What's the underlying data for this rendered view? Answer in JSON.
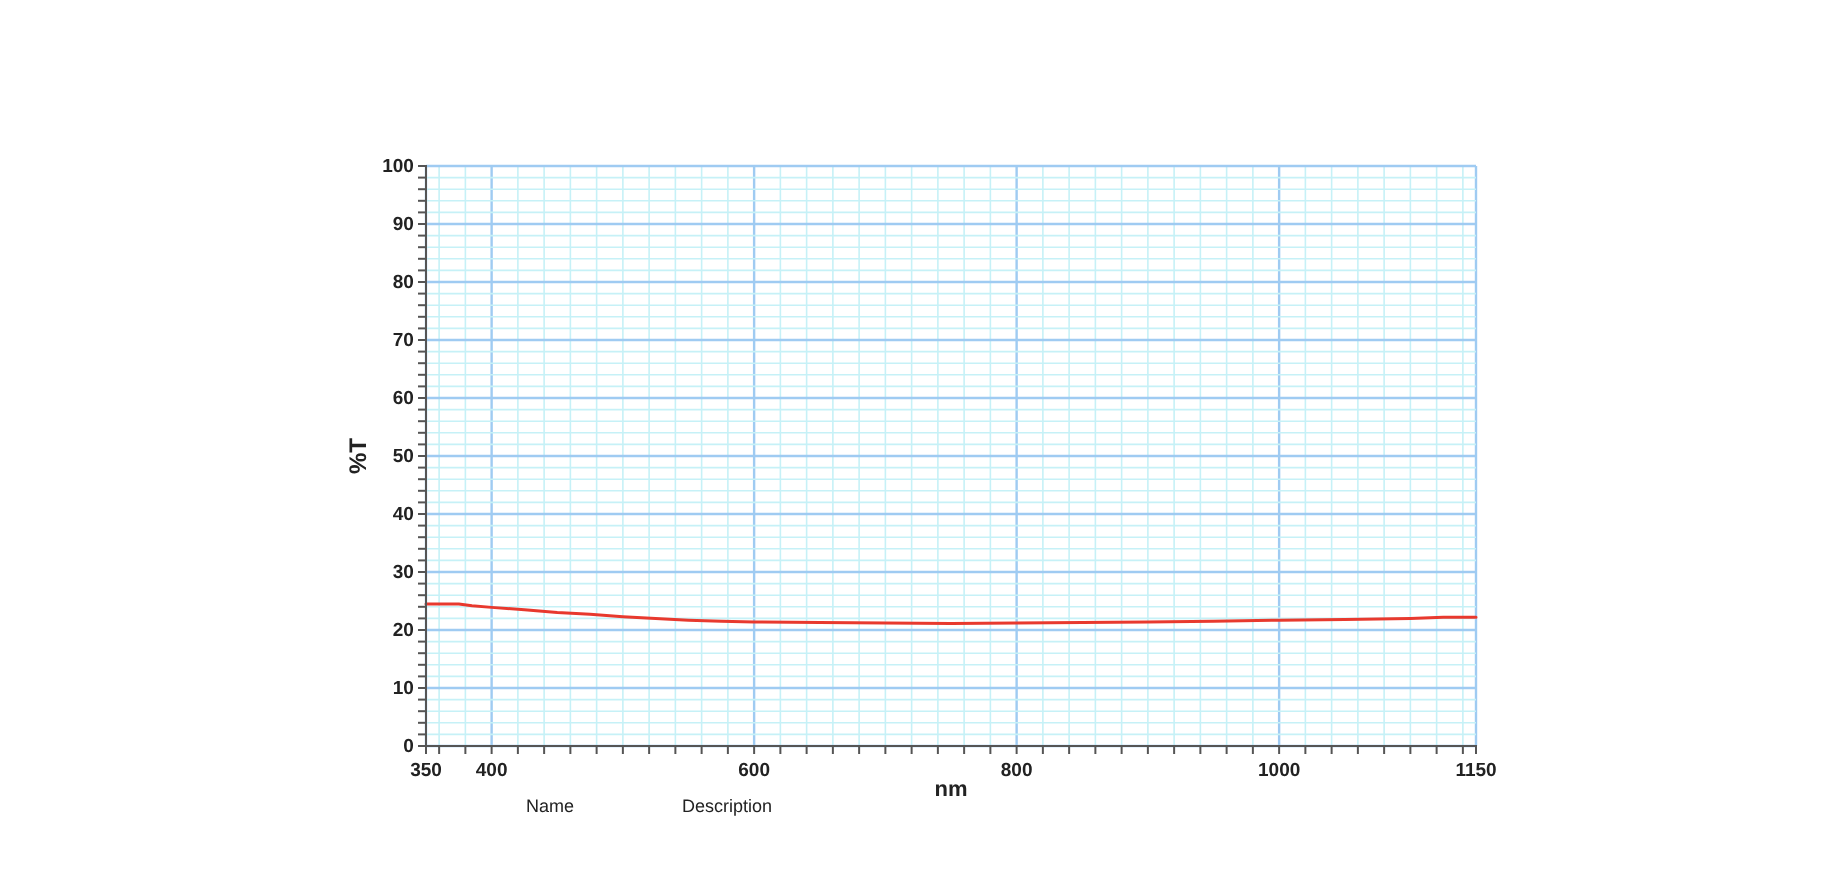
{
  "chart_data": {
    "type": "line",
    "xlabel": "nm",
    "ylabel": "%T",
    "annotations": [
      "Name",
      "Description"
    ],
    "x": [
      350,
      375,
      385,
      400,
      425,
      450,
      475,
      500,
      525,
      550,
      575,
      600,
      650,
      700,
      750,
      800,
      850,
      900,
      950,
      1000,
      1050,
      1100,
      1125,
      1150
    ],
    "series": [
      {
        "color": "#e8392e",
        "values": [
          24.5,
          24.5,
          24.2,
          23.9,
          23.5,
          23.0,
          22.7,
          22.3,
          22.0,
          21.7,
          21.5,
          21.4,
          21.3,
          21.2,
          21.1,
          21.2,
          21.3,
          21.4,
          21.5,
          21.7,
          21.8,
          22.0,
          22.2,
          22.2
        ]
      }
    ],
    "xlim": [
      350,
      1150
    ],
    "xticks": [
      350,
      {
        "value": 360,
        "label": null
      },
      {
        "value": 380,
        "label": null
      },
      400,
      {
        "value": 420,
        "label": null
      },
      {
        "value": 440,
        "label": null
      },
      {
        "value": 460,
        "label": null
      },
      {
        "value": 480,
        "label": null
      },
      {
        "value": 500,
        "label": null
      },
      {
        "value": 520,
        "label": null
      },
      {
        "value": 540,
        "label": null
      },
      {
        "value": 560,
        "label": null
      },
      {
        "value": 580,
        "label": null
      },
      600,
      {
        "value": 620,
        "label": null
      },
      {
        "value": 640,
        "label": null
      },
      {
        "value": 660,
        "label": null
      },
      {
        "value": 680,
        "label": null
      },
      {
        "value": 700,
        "label": null
      },
      {
        "value": 720,
        "label": null
      },
      {
        "value": 740,
        "label": null
      },
      {
        "value": 760,
        "label": null
      },
      {
        "value": 780,
        "label": null
      },
      800,
      {
        "value": 820,
        "label": null
      },
      {
        "value": 840,
        "label": null
      },
      {
        "value": 860,
        "label": null
      },
      {
        "value": 880,
        "label": null
      },
      {
        "value": 900,
        "label": null
      },
      {
        "value": 920,
        "label": null
      },
      {
        "value": 940,
        "label": null
      },
      {
        "value": 960,
        "label": null
      },
      {
        "value": 980,
        "label": null
      },
      1000,
      {
        "value": 1020,
        "label": null
      },
      {
        "value": 1040,
        "label": null
      },
      {
        "value": 1060,
        "label": null
      },
      {
        "value": 1080,
        "label": null
      },
      {
        "value": 1100,
        "label": null
      },
      {
        "value": 1120,
        "label": null
      },
      {
        "value": 1140,
        "label": null
      },
      1150
    ],
    "ylim": [
      0,
      100
    ],
    "yticks": [
      0,
      {
        "value": 2,
        "label": null
      },
      {
        "value": 4,
        "label": null
      },
      {
        "value": 6,
        "label": null
      },
      {
        "value": 8,
        "label": null
      },
      10,
      {
        "value": 12,
        "label": null
      },
      {
        "value": 14,
        "label": null
      },
      {
        "value": 16,
        "label": null
      },
      {
        "value": 18,
        "label": null
      },
      20,
      {
        "value": 22,
        "label": null
      },
      {
        "value": 24,
        "label": null
      },
      {
        "value": 26,
        "label": null
      },
      {
        "value": 28,
        "label": null
      },
      30,
      {
        "value": 32,
        "label": null
      },
      {
        "value": 34,
        "label": null
      },
      {
        "value": 36,
        "label": null
      },
      {
        "value": 38,
        "label": null
      },
      40,
      {
        "value": 42,
        "label": null
      },
      {
        "value": 44,
        "label": null
      },
      {
        "value": 46,
        "label": null
      },
      {
        "value": 48,
        "label": null
      },
      50,
      {
        "value": 52,
        "label": null
      },
      {
        "value": 54,
        "label": null
      },
      {
        "value": 56,
        "label": null
      },
      {
        "value": 58,
        "label": null
      },
      60,
      {
        "value": 62,
        "label": null
      },
      {
        "value": 64,
        "label": null
      },
      {
        "value": 66,
        "label": null
      },
      {
        "value": 68,
        "label": null
      },
      70,
      {
        "value": 72,
        "label": null
      },
      {
        "value": 74,
        "label": null
      },
      {
        "value": 76,
        "label": null
      },
      {
        "value": 78,
        "label": null
      },
      80,
      {
        "value": 82,
        "label": null
      },
      {
        "value": 84,
        "label": null
      },
      {
        "value": 86,
        "label": null
      },
      {
        "value": 88,
        "label": null
      },
      90,
      {
        "value": 92,
        "label": null
      },
      {
        "value": 94,
        "label": null
      },
      {
        "value": 96,
        "label": null
      },
      {
        "value": 98,
        "label": null
      },
      100
    ],
    "grid": true,
    "marker": "none",
    "line_style": "solid"
  }
}
